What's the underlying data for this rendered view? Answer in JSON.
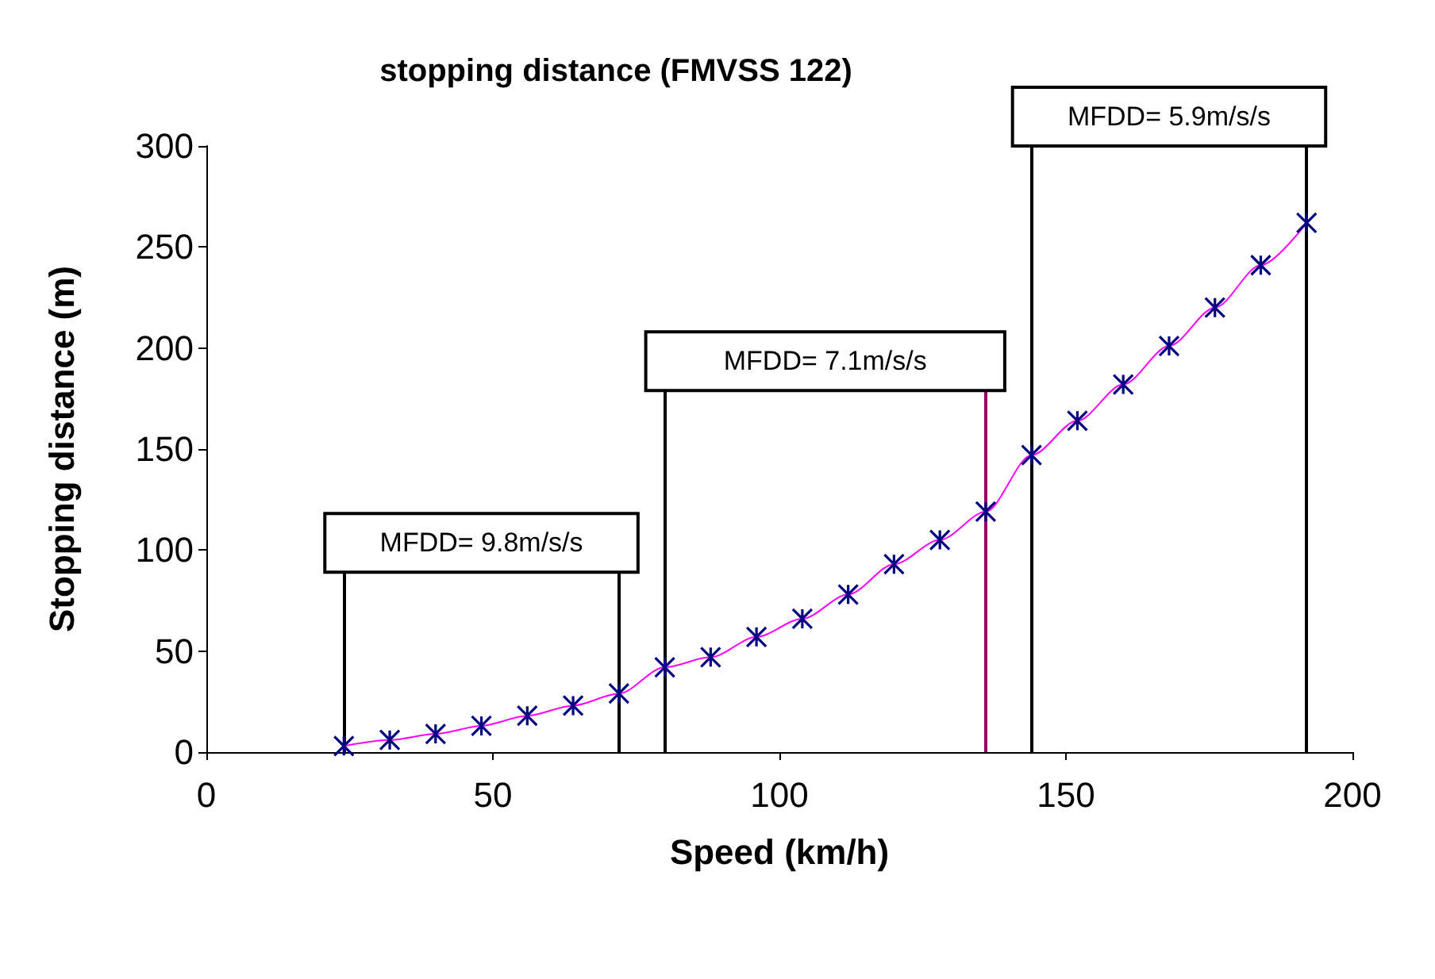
{
  "chart_data": {
    "type": "line",
    "title": "stopping distance (FMVSS 122)",
    "xlabel": "Speed (km/h)",
    "ylabel": "Stopping distance (m)",
    "x": [
      24,
      32,
      40,
      48,
      56,
      64,
      72,
      80,
      88,
      96,
      104,
      112,
      120,
      128,
      136,
      144,
      152,
      160,
      168,
      176,
      184,
      192
    ],
    "series": [
      {
        "color": "#ff00ff",
        "colors": [
          "#000080",
          "#000080",
          "#000080",
          "#000080",
          "#000080",
          "#000080",
          "#000080",
          "#000080",
          "#000080",
          "#000080",
          "#000080",
          "#000080",
          "#000080",
          "#000080",
          "#000080",
          "#000080",
          "#000080",
          "#000080",
          "#000080",
          "#000080",
          "#000080",
          "#000080"
        ],
        "values": [
          3,
          6,
          9,
          13,
          18,
          23,
          29,
          42,
          47,
          57,
          66,
          78,
          93,
          105,
          119,
          147,
          164,
          182,
          201,
          220,
          241,
          262
        ]
      }
    ],
    "xlim": [
      0,
      200
    ],
    "xticks": [
      0,
      50,
      100,
      150,
      200
    ],
    "ylim": [
      0,
      300
    ],
    "yticks": [
      0,
      50,
      100,
      150,
      200,
      250,
      300
    ],
    "grid": false,
    "marker": "cross",
    "line_style": "solid",
    "ref_lines": [
      {
        "axis": "x",
        "value": 24,
        "color": "#000000"
      },
      {
        "axis": "x",
        "value": 72,
        "color": "#000000"
      },
      {
        "axis": "x",
        "value": 80,
        "color": "#000000"
      },
      {
        "axis": "x",
        "value": 136,
        "color": "#990066"
      },
      {
        "axis": "x",
        "value": 144,
        "color": "#000000"
      },
      {
        "axis": "x",
        "value": 192,
        "color": "#000000"
      }
    ],
    "annotations": [
      "MFDD= 9.8m/s/s",
      "MFDD= 7.1m/s/s",
      "MFDD= 5.9m/s/s"
    ]
  }
}
